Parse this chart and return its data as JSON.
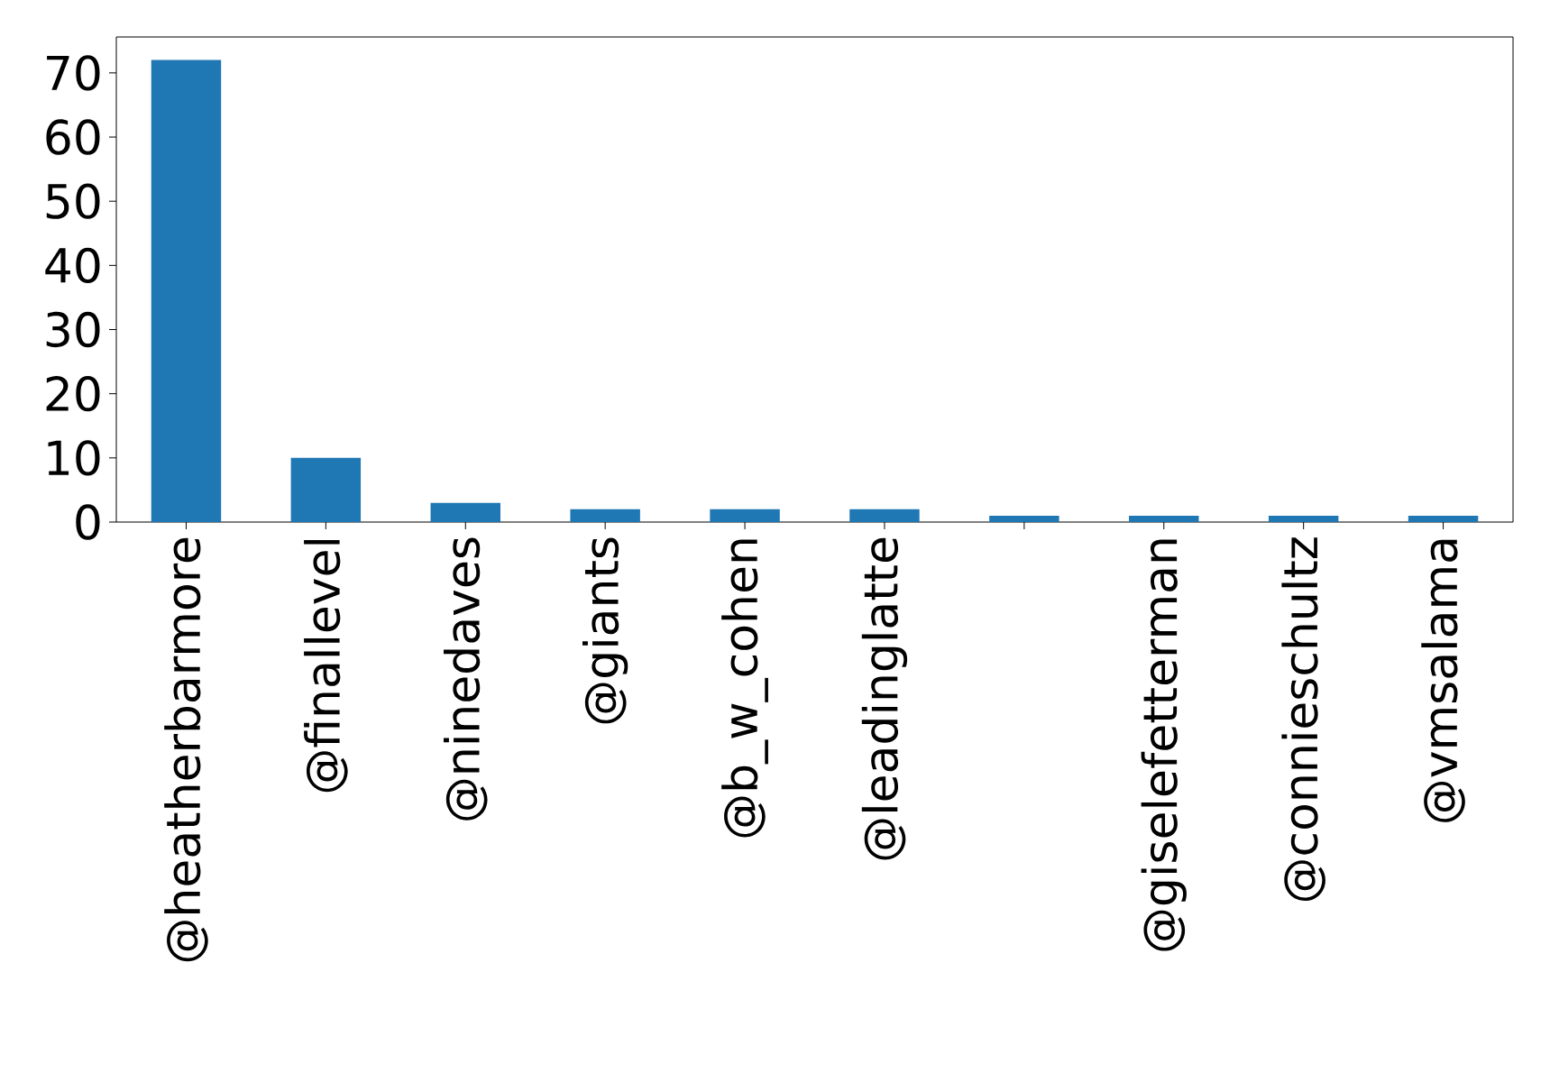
{
  "chart_data": {
    "type": "bar",
    "categories": [
      "@heatherbarmore",
      "@finallevel",
      "@ninedaves",
      "@giants",
      "@b_w_cohen",
      "@leadinglatte",
      null,
      "@giselefetterman",
      "@connieschultz",
      "@vmsalama"
    ],
    "values": [
      72,
      10,
      3,
      2,
      2,
      2,
      1,
      1,
      1,
      1
    ],
    "color": "#1f77b4",
    "ylim": [
      0,
      75.6
    ],
    "yticks": [
      0,
      10,
      20,
      30,
      40,
      50,
      60,
      70
    ]
  }
}
